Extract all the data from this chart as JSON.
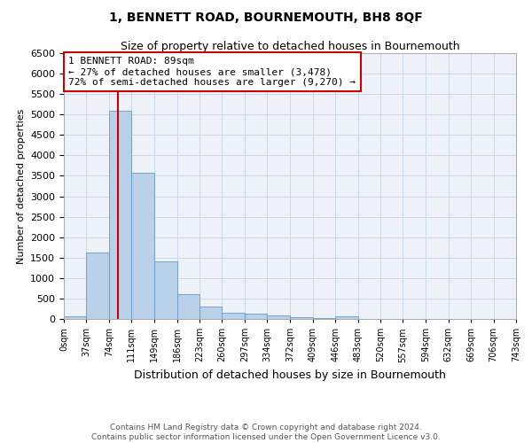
{
  "title": "1, BENNETT ROAD, BOURNEMOUTH, BH8 8QF",
  "subtitle": "Size of property relative to detached houses in Bournemouth",
  "xlabel": "Distribution of detached houses by size in Bournemouth",
  "ylabel": "Number of detached properties",
  "footer_line1": "Contains HM Land Registry data © Crown copyright and database right 2024.",
  "footer_line2": "Contains public sector information licensed under the Open Government Licence v3.0.",
  "bin_edges": [
    0,
    37,
    74,
    111,
    149,
    186,
    223,
    260,
    297,
    334,
    372,
    409,
    446,
    483,
    520,
    557,
    594,
    632,
    669,
    706,
    743
  ],
  "bin_labels": [
    "0sqm",
    "37sqm",
    "74sqm",
    "111sqm",
    "149sqm",
    "186sqm",
    "223sqm",
    "260sqm",
    "297sqm",
    "334sqm",
    "372sqm",
    "409sqm",
    "446sqm",
    "483sqm",
    "520sqm",
    "557sqm",
    "594sqm",
    "632sqm",
    "669sqm",
    "706sqm",
    "743sqm"
  ],
  "bar_heights": [
    75,
    1625,
    5100,
    3575,
    1400,
    600,
    300,
    155,
    120,
    85,
    40,
    30,
    55,
    0,
    0,
    0,
    0,
    0,
    0,
    0
  ],
  "bar_color": "#b8d0e8",
  "bar_edge_color": "#6699cc",
  "property_line_x": 89,
  "property_line_color": "#cc0000",
  "ylim": [
    0,
    6500
  ],
  "yticks": [
    0,
    500,
    1000,
    1500,
    2000,
    2500,
    3000,
    3500,
    4000,
    4500,
    5000,
    5500,
    6000,
    6500
  ],
  "annotation_text": "1 BENNETT ROAD: 89sqm\n← 27% of detached houses are smaller (3,478)\n72% of semi-detached houses are larger (9,270) →",
  "annotation_box_color": "#cc0000",
  "grid_color": "#c8d8ec",
  "background_color": "#eef2f8"
}
